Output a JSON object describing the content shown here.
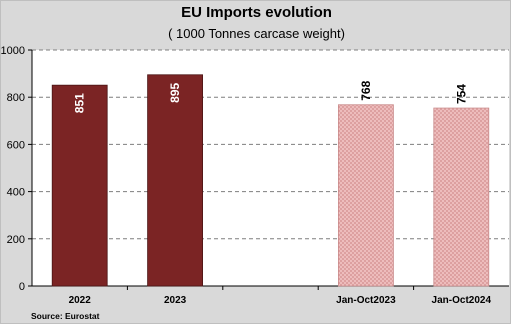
{
  "chart_data": {
    "type": "bar",
    "title": "EU Imports evolution",
    "subtitle": "( 1000 Tonnes carcase weight)",
    "source": "Source: Eurostat",
    "categories": [
      "2022",
      "2023",
      "",
      "Jan-Oct2023",
      "Jan-Oct2024"
    ],
    "values": [
      851,
      895,
      null,
      768,
      754
    ],
    "data_labels": [
      "851",
      "895",
      "",
      "768",
      "754"
    ],
    "bar_styles": [
      "solid",
      "solid",
      "none",
      "hatched",
      "hatched"
    ],
    "ylim": [
      0,
      1000
    ],
    "yticks": [
      0,
      200,
      400,
      600,
      800,
      1000
    ],
    "ytick_labels": [
      "0",
      "200",
      "400",
      "600",
      "800",
      "1000"
    ],
    "grid": true,
    "colors": {
      "solid": "#7b2424",
      "hatched_fill": "#f2c4c4",
      "hatched_line": "#d99a9a",
      "grid": "#7f7f7f",
      "plot_bg": "#ffffff",
      "label_on_solid": "#ffffff",
      "label_above": "#000000"
    }
  }
}
